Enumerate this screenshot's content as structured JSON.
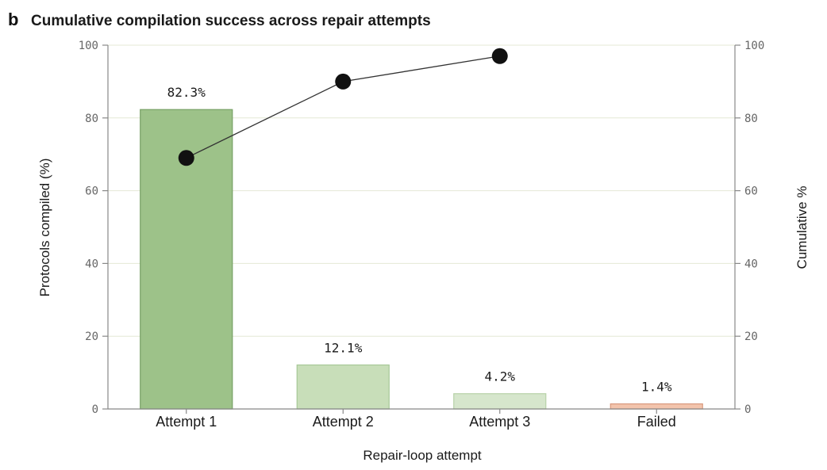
{
  "panel_letter": "b",
  "chart_data": {
    "type": "bar",
    "title": "Cumulative compilation success across repair attempts",
    "categories": [
      "Attempt 1",
      "Attempt 2",
      "Attempt 3",
      "Failed"
    ],
    "values": [
      82.3,
      12.1,
      4.2,
      1.4
    ],
    "data_labels": [
      "82.3%",
      "12.1%",
      "4.2%",
      "1.4%"
    ],
    "bar_colors": [
      "#9dc289",
      "#c8deb9",
      "#d6e6cc",
      "#f3c4ac"
    ],
    "bar_edge_colors": [
      "#76a064",
      "#a7c898",
      "#b7d2a8",
      "#d99a7e"
    ],
    "line_series": {
      "values": [
        69,
        90,
        97
      ],
      "color": "#000000",
      "marker": "filled-circle"
    },
    "xlabel": "Repair-loop attempt",
    "ylabel": "Protocols compiled (%)",
    "y2label": "Cumulative %",
    "ylim": [
      0,
      100
    ],
    "y2lim": [
      0,
      100
    ],
    "yticks": [
      0,
      20,
      40,
      60,
      80,
      100
    ],
    "y2ticks": [
      0,
      20,
      40,
      60,
      80,
      100
    ],
    "grid": true,
    "grid_color": "#e4e8d6"
  }
}
